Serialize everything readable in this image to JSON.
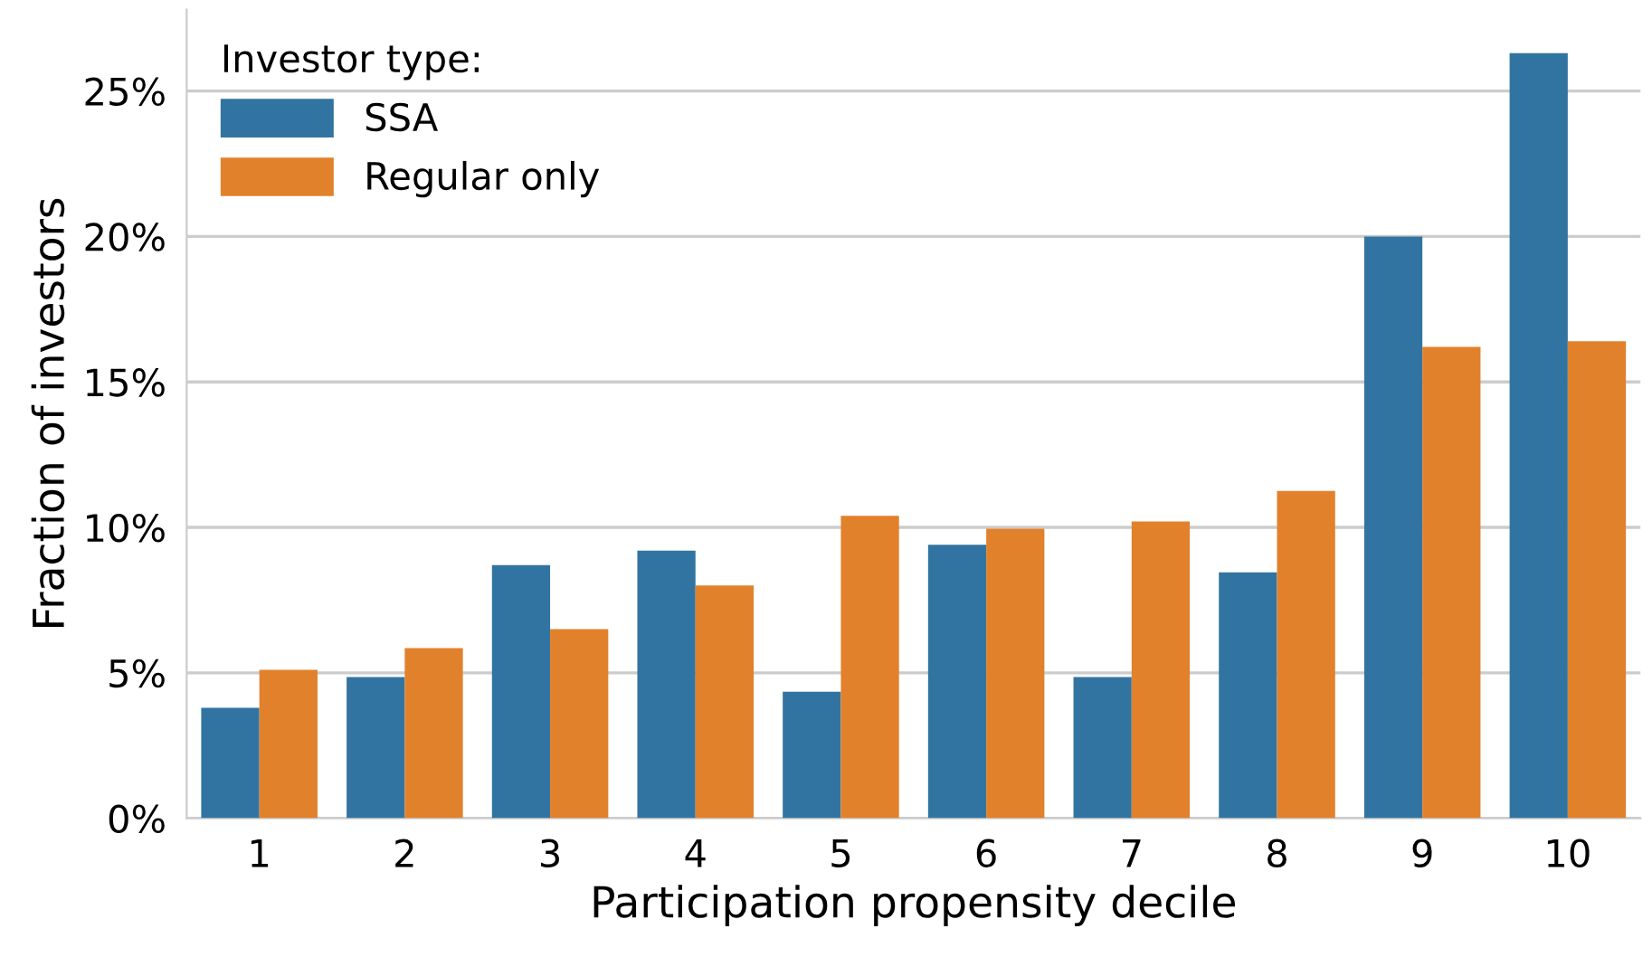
{
  "chart_data": {
    "type": "bar",
    "xlabel": "Participation propensity decile",
    "ylabel": "Fraction of investors",
    "legend_title": "Investor type:",
    "legend": "top left",
    "grid": "y",
    "categories": [
      "1",
      "2",
      "3",
      "4",
      "5",
      "6",
      "7",
      "8",
      "9",
      "10"
    ],
    "series": [
      {
        "name": "SSA",
        "color": "#3274a1",
        "values": [
          3.8,
          4.85,
          8.7,
          9.2,
          4.35,
          9.4,
          4.85,
          8.45,
          20.0,
          26.3
        ]
      },
      {
        "name": "Regular only",
        "color": "#e1812c",
        "values": [
          5.1,
          5.85,
          6.5,
          8.0,
          10.4,
          9.95,
          10.2,
          11.25,
          16.2,
          16.4
        ]
      }
    ],
    "ylim": [
      0,
      27.8
    ],
    "yticks": [
      {
        "value": 0,
        "label": "0%"
      },
      {
        "value": 5,
        "label": "5%"
      },
      {
        "value": 10,
        "label": "10%"
      },
      {
        "value": 15,
        "label": "15%"
      },
      {
        "value": 20,
        "label": "20%"
      },
      {
        "value": 25,
        "label": "25%"
      }
    ]
  }
}
